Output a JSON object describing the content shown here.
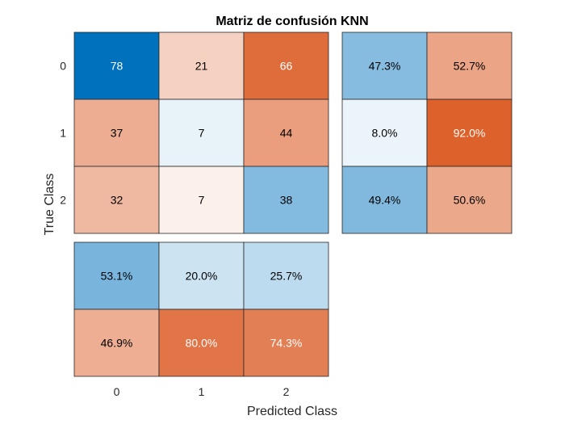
{
  "chart_data": {
    "type": "heatmap",
    "title": "Matriz de confusión KNN",
    "xlabel": "Predicted Class",
    "ylabel": "True Class",
    "classes": [
      "0",
      "1",
      "2"
    ],
    "matrix": [
      [
        78,
        21,
        66
      ],
      [
        37,
        7,
        44
      ],
      [
        32,
        7,
        38
      ]
    ],
    "row_summary": [
      [
        "47.3%",
        "52.7%"
      ],
      [
        "8.0%",
        "92.0%"
      ],
      [
        "49.4%",
        "50.6%"
      ]
    ],
    "column_summary": [
      [
        "53.1%",
        "20.0%",
        "25.7%"
      ],
      [
        "46.9%",
        "80.0%",
        "74.3%"
      ]
    ],
    "colors": {
      "diagonal": "#0072bd",
      "off_diagonal": "#d95319",
      "white": "#ffffff"
    }
  }
}
